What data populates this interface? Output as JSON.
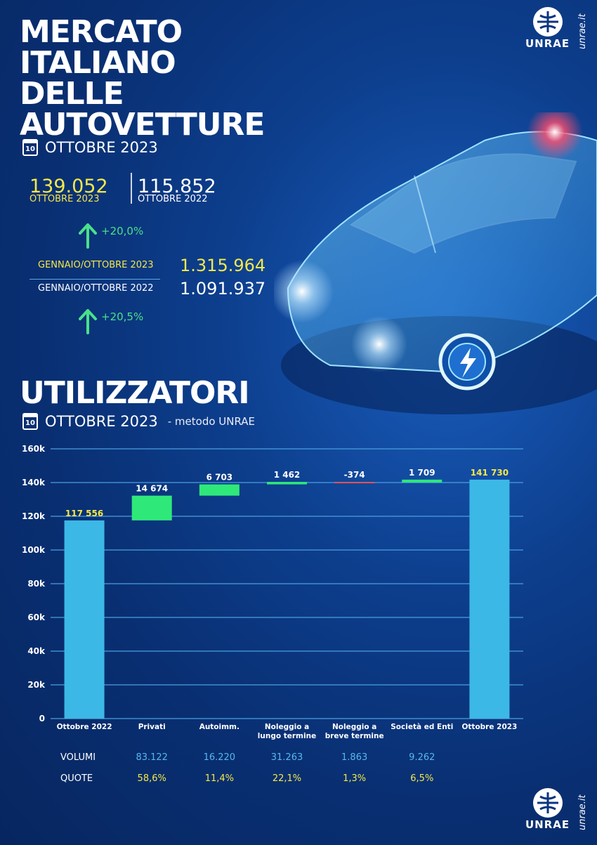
{
  "header": {
    "title_lines": [
      "MERCATO",
      "ITALIANO",
      "DELLE",
      "AUTOVETTURE"
    ],
    "calendar_day": "10",
    "month": "OTTOBRE 2023"
  },
  "monthly": {
    "current_value": "139.052",
    "current_label": "OTTOBRE 2023",
    "previous_value": "115.852",
    "previous_label": "OTTOBRE 2022",
    "change": "+20,0%"
  },
  "ytd": {
    "current_label": "GENNAIO/OTTOBRE 2023",
    "current_value": "1.315.964",
    "previous_label": "GENNAIO/OTTOBRE 2022",
    "previous_value": "1.091.937",
    "change": "+20,5%"
  },
  "logo": {
    "text": "UNRAE",
    "site": "unrae.it"
  },
  "section": {
    "title": "UTILIZZATORI",
    "calendar_day": "10",
    "month": "OTTOBRE 2023",
    "note": "- metodo UNRAE"
  },
  "colors": {
    "yellow": "#f3e84a",
    "green": "#4ae08a",
    "bar_total": "#3cb8e6",
    "bar_increase": "#2fe87a",
    "bar_decrease": "#e05555",
    "gridline": "#4a9fe0"
  },
  "chart_data": {
    "type": "waterfall",
    "categories": [
      "Ottobre 2022",
      "Privati",
      "Autoimm.",
      "Noleggio a lungo termine",
      "Noleggio a breve termine",
      "Società ed Enti",
      "Ottobre 2023"
    ],
    "category_lines": [
      [
        "Ottobre 2022"
      ],
      [
        "Privati"
      ],
      [
        "Autoimm."
      ],
      [
        "Noleggio a",
        "lungo termine"
      ],
      [
        "Noleggio a",
        "breve termine"
      ],
      [
        "Società ed Enti"
      ],
      [
        "Ottobre 2023"
      ]
    ],
    "values": [
      117556,
      14674,
      6703,
      1462,
      -374,
      1709,
      141730
    ],
    "kinds": [
      "total",
      "delta",
      "delta",
      "delta",
      "delta",
      "delta",
      "total"
    ],
    "value_labels": [
      "117 556",
      "14 674",
      "6 703",
      "1 462",
      "-374",
      "1 709",
      "141 730"
    ],
    "ylim": [
      0,
      160000
    ],
    "yticks": [
      0,
      20000,
      40000,
      60000,
      80000,
      100000,
      120000,
      140000,
      160000
    ],
    "ytick_labels": [
      "0",
      "20k",
      "40k",
      "60k",
      "80k",
      "100k",
      "120k",
      "140k",
      "160k"
    ],
    "grid": true
  },
  "table": {
    "volumes_label": "VOLUMI",
    "shares_label": "QUOTE",
    "volumes": [
      "83.122",
      "16.220",
      "31.263",
      "1.863",
      "9.262"
    ],
    "shares": [
      "58,6%",
      "11,4%",
      "22,1%",
      "1,3%",
      "6,5%"
    ]
  }
}
